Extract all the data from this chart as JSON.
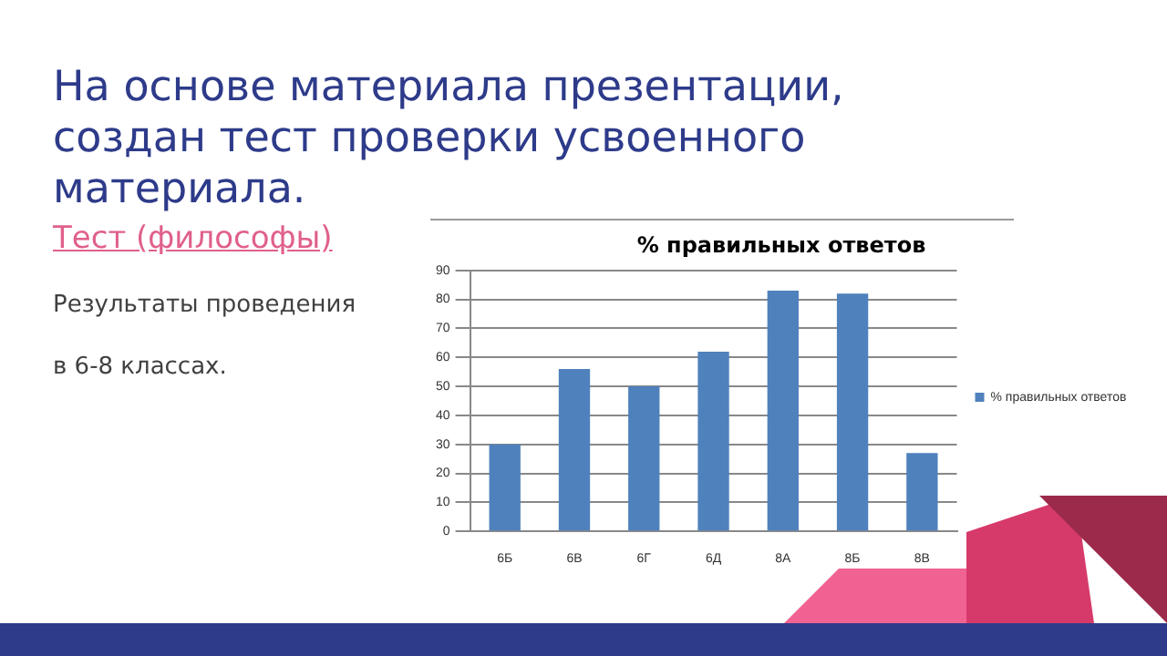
{
  "chart_data": {
    "type": "bar",
    "title": "% правильных ответов",
    "annotations": [
      "На основе материала презентации, создан тест проверки усвоенного материала.",
      "Тест (философы)",
      "Результаты проведения",
      "в 6-8 классах."
    ],
    "categories": [
      "6Б",
      "6В",
      "6Г",
      "6Д",
      "8А",
      "8Б",
      "8В"
    ],
    "series": [
      {
        "name": "% правильных ответов",
        "color": "#4f81bd",
        "values": [
          30,
          56,
          50,
          62,
          83,
          82,
          27
        ]
      }
    ],
    "ylim": [
      0,
      90
    ],
    "yticks": [
      0,
      10,
      20,
      30,
      40,
      50,
      60,
      70,
      80,
      90
    ],
    "grid": "y",
    "legend": "right"
  }
}
